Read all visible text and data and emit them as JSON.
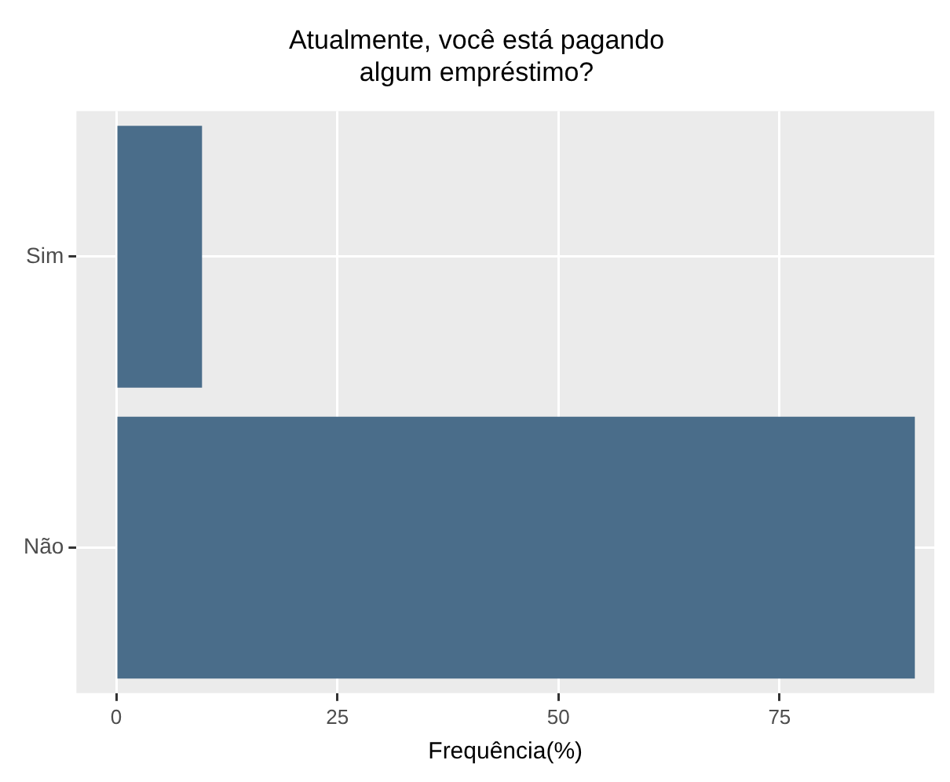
{
  "chart_data": {
    "type": "bar",
    "orientation": "horizontal",
    "title": "Atualmente, você está pagando\nalgum empréstimo?",
    "xlabel": "Frequência(%)",
    "categories": [
      "Sim",
      "Não"
    ],
    "values": [
      9.7,
      90.3
    ],
    "color": "#4a6d8a",
    "xlim": [
      -4.5,
      92.5
    ],
    "xticks": [
      0,
      25,
      50,
      75
    ],
    "grid": true
  }
}
